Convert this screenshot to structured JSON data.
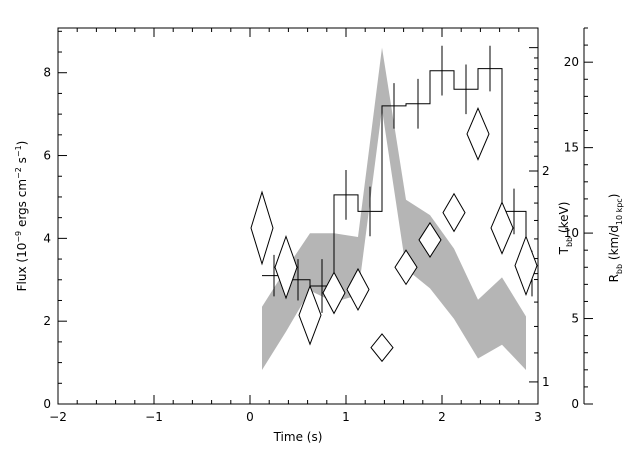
{
  "chart_data": {
    "type": "line",
    "title": "",
    "xlabel": "Time (s)",
    "xlim": [
      -2,
      3
    ],
    "xticks": [
      "−2",
      "−1",
      "0",
      "1",
      "2",
      "3"
    ],
    "xtick_values": [
      -2,
      -1,
      0,
      1,
      2,
      3
    ],
    "axes": {
      "flux": {
        "label_parts": [
          "Flux (10",
          "−9",
          " ergs cm",
          "−2",
          " s",
          "−1",
          ")"
        ],
        "ylim": [
          0,
          9.08
        ],
        "ticks": [
          "0",
          "2",
          "4",
          "6",
          "8"
        ],
        "tick_values": [
          0,
          2,
          4,
          6,
          8
        ]
      },
      "kt": {
        "label_main": "T",
        "label_sub": "bb",
        "label_rest": " (keV)",
        "scale": "log",
        "ylim": [
          0.93,
          3.2
        ],
        "ticks": [
          "1",
          "2"
        ],
        "tick_values": [
          1,
          2
        ]
      },
      "radius": {
        "label_main": "R",
        "label_sub": "bb",
        "label_mid": " (km/d",
        "label_sub2": "10 kpc",
        "label_end": ")",
        "ylim": [
          0,
          22
        ],
        "ticks": [
          "0",
          "5",
          "10",
          "15",
          "20"
        ],
        "tick_values": [
          0,
          5,
          10,
          15,
          20
        ]
      }
    },
    "series": [
      {
        "kind": "step-with-errorbars",
        "axis": "flux",
        "color": "#000000",
        "bins": [
          {
            "x0": 0.125,
            "x1": 0.375,
            "y": 3.1,
            "err": 0.5
          },
          {
            "x0": 0.375,
            "x1": 0.625,
            "y": 3.0,
            "err": 0.5
          },
          {
            "x0": 0.625,
            "x1": 0.875,
            "y": 2.85,
            "err": 0.65
          },
          {
            "x0": 0.875,
            "x1": 1.125,
            "y": 5.05,
            "err": 0.6
          },
          {
            "x0": 1.125,
            "x1": 1.375,
            "y": 4.65,
            "err": 0.6
          },
          {
            "x0": 1.375,
            "x1": 1.625,
            "y": 7.2,
            "err": 0.55
          },
          {
            "x0": 1.625,
            "x1": 1.875,
            "y": 7.25,
            "err": 0.6
          },
          {
            "x0": 1.875,
            "x1": 2.125,
            "y": 8.05,
            "err": 0.6
          },
          {
            "x0": 2.125,
            "x1": 2.375,
            "y": 7.6,
            "err": 0.6
          },
          {
            "x0": 2.375,
            "x1": 2.625,
            "y": 8.1,
            "err": 0.55
          },
          {
            "x0": 2.625,
            "x1": 2.875,
            "y": 4.65,
            "err": 0.55
          },
          {
            "x0": 2.875,
            "x1": 3.0,
            "y": 3.15,
            "err": 0.55
          }
        ]
      },
      {
        "kind": "band",
        "axis": "kt",
        "color": "#b5b5b5",
        "points": [
          {
            "x": 0.125,
            "lo": 1.04,
            "hi": 1.28
          },
          {
            "x": 0.375,
            "lo": 1.18,
            "hi": 1.45
          },
          {
            "x": 0.625,
            "lo": 1.35,
            "hi": 1.63
          },
          {
            "x": 0.875,
            "lo": 1.3,
            "hi": 1.63
          },
          {
            "x": 1.125,
            "lo": 1.33,
            "hi": 1.61
          },
          {
            "x": 1.375,
            "lo": 2.45,
            "hi": 3.0
          },
          {
            "x": 1.625,
            "lo": 1.45,
            "hi": 1.82
          },
          {
            "x": 1.875,
            "lo": 1.36,
            "hi": 1.73
          },
          {
            "x": 2.125,
            "lo": 1.23,
            "hi": 1.55
          },
          {
            "x": 2.375,
            "lo": 1.08,
            "hi": 1.31
          },
          {
            "x": 2.625,
            "lo": 1.13,
            "hi": 1.41
          },
          {
            "x": 2.875,
            "lo": 1.04,
            "hi": 1.24
          }
        ]
      },
      {
        "kind": "diamond-markers",
        "axis": "radius",
        "color": "#000000",
        "points": [
          {
            "x": 0.125,
            "y": 10.3,
            "err": 2.1
          },
          {
            "x": 0.375,
            "y": 8.0,
            "err": 1.8
          },
          {
            "x": 0.625,
            "y": 5.2,
            "err": 1.7
          },
          {
            "x": 0.875,
            "y": 6.5,
            "err": 1.2
          },
          {
            "x": 1.125,
            "y": 6.7,
            "err": 1.2
          },
          {
            "x": 1.375,
            "y": 3.3,
            "err": 0.8
          },
          {
            "x": 1.625,
            "y": 8.0,
            "err": 1.0
          },
          {
            "x": 1.875,
            "y": 9.6,
            "err": 1.0
          },
          {
            "x": 2.125,
            "y": 11.2,
            "err": 1.1
          },
          {
            "x": 2.375,
            "y": 15.8,
            "err": 1.5
          },
          {
            "x": 2.625,
            "y": 10.3,
            "err": 1.5
          },
          {
            "x": 2.875,
            "y": 8.1,
            "err": 1.7
          }
        ]
      }
    ]
  }
}
